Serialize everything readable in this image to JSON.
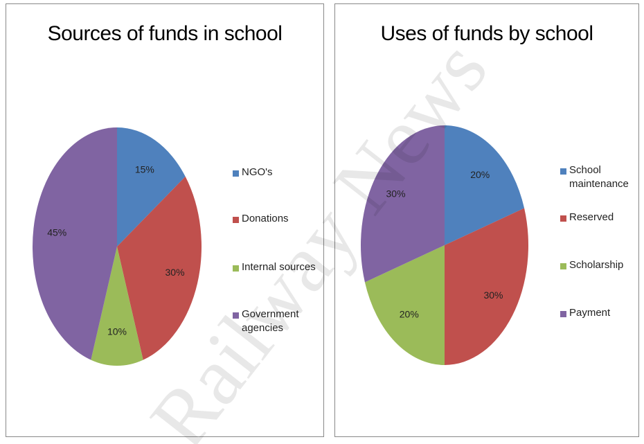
{
  "chart_data": [
    {
      "type": "pie",
      "title": "Sources of funds in school",
      "categories": [
        "NGO's",
        "Donations",
        "Internal sources",
        "Government agencies"
      ],
      "values": [
        15,
        30,
        10,
        45
      ],
      "value_labels": [
        "15%",
        "30%",
        "10%",
        "45%"
      ],
      "colors": [
        "#4f81bd",
        "#c0504d",
        "#9bbb59",
        "#8064a2"
      ]
    },
    {
      "type": "pie",
      "title": "Uses of funds by school",
      "categories": [
        "School maintenance",
        "Reserved",
        "Scholarship",
        "Payment"
      ],
      "values": [
        20,
        30,
        20,
        30
      ],
      "value_labels": [
        "20%",
        "30%",
        "20%",
        "30%"
      ],
      "colors": [
        "#4f81bd",
        "#c0504d",
        "#9bbb59",
        "#8064a2"
      ]
    }
  ],
  "watermark": "Railway News"
}
